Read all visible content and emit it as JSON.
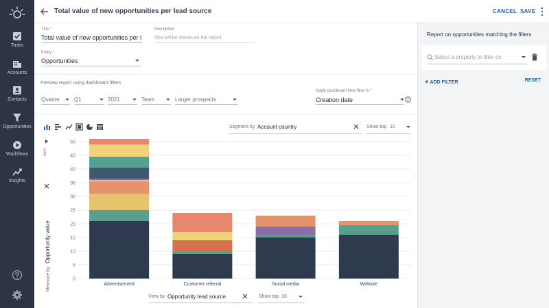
{
  "nav": {
    "items": [
      {
        "label": "Tasks",
        "icon": "tasks-icon"
      },
      {
        "label": "Accounts",
        "icon": "accounts-icon"
      },
      {
        "label": "Contacts",
        "icon": "contacts-icon"
      },
      {
        "label": "Opportunities",
        "icon": "opportunities-icon"
      },
      {
        "label": "Workflows",
        "icon": "workflows-icon"
      },
      {
        "label": "Insights",
        "icon": "insights-icon"
      }
    ]
  },
  "header": {
    "title": "Total value of new opportunities per lead source",
    "cancel": "CANCEL",
    "save": "SAVE"
  },
  "form": {
    "title_label": "Title *",
    "title_value": "Total value of new opportunities per lead",
    "description_label": "Description",
    "description_placeholder": "This will be shown on the report",
    "entity_label": "Entity *",
    "entity_value": "Opportunities",
    "preview_text": "Preview report using dashboard filters",
    "filters": {
      "period": "Quarter",
      "quarter": "Q1",
      "year": "2021",
      "team": "Team",
      "segment": "Larger prospects"
    },
    "time_filter_label": "Apply dashboard time filter to *",
    "time_filter_value": "Creation date"
  },
  "chart_controls": {
    "segment_label": "Segment by",
    "segment_value": "Account country",
    "show_top_label": "Show top",
    "show_top_value": "10",
    "sum_label": "sum",
    "measure_label": "Measure by",
    "measure_value": "Opportunity value",
    "view_label": "View by",
    "view_value": "Opportunity lead source",
    "view_show_top_label": "Show top",
    "view_show_top_value": "10"
  },
  "chart_data": {
    "type": "bar",
    "stacked": true,
    "categories": [
      "Advertisement",
      "Customer referral",
      "Social media",
      "Website"
    ],
    "ylim": [
      0,
      50
    ],
    "yticks": [
      0,
      5,
      10,
      15,
      20,
      25,
      30,
      35,
      40,
      45,
      50
    ],
    "grid": true,
    "ylabel": "Opportunity value",
    "xlabel": "Opportunity lead source",
    "colors": [
      "#2e3b4e",
      "#5a9e8c",
      "#e6c46e",
      "#e5936a",
      "#8a6fa8",
      "#3f5a6d",
      "#52a192",
      "#f0d27a",
      "#e6886c"
    ],
    "segments": [
      [
        21,
        4,
        6,
        4.5,
        0.5,
        0.5,
        4,
        4,
        4.5,
        2
      ],
      [
        9,
        1,
        4,
        3,
        7
      ],
      [
        15,
        1,
        3,
        4
      ],
      [
        16,
        2,
        1.5,
        1.5
      ]
    ],
    "segment_colors": [
      [
        "#2e3b4e",
        "#5a9e8c",
        "#e6c46e",
        "#e5936a",
        "#f2b48c",
        "#8a6fa8",
        "#3f5a6d",
        "#52a192",
        "#f0d27a",
        "#e6886c"
      ],
      [
        "#2e3b4e",
        "#5a9e8c",
        "#d9704f",
        "#f0d27a",
        "#e6886c"
      ],
      [
        "#2e3b4e",
        "#5a9e8c",
        "#8a6fa8",
        "#e5936a"
      ],
      [
        "#2e3b4e",
        "#5a9e8c",
        "#52a192",
        "#e5936a"
      ]
    ]
  },
  "right_panel": {
    "title": "Report on opportunities matching the filters",
    "filter_placeholder": "Select a property to filter on",
    "add_filter": "ADD FILTER",
    "reset": "RESET"
  }
}
